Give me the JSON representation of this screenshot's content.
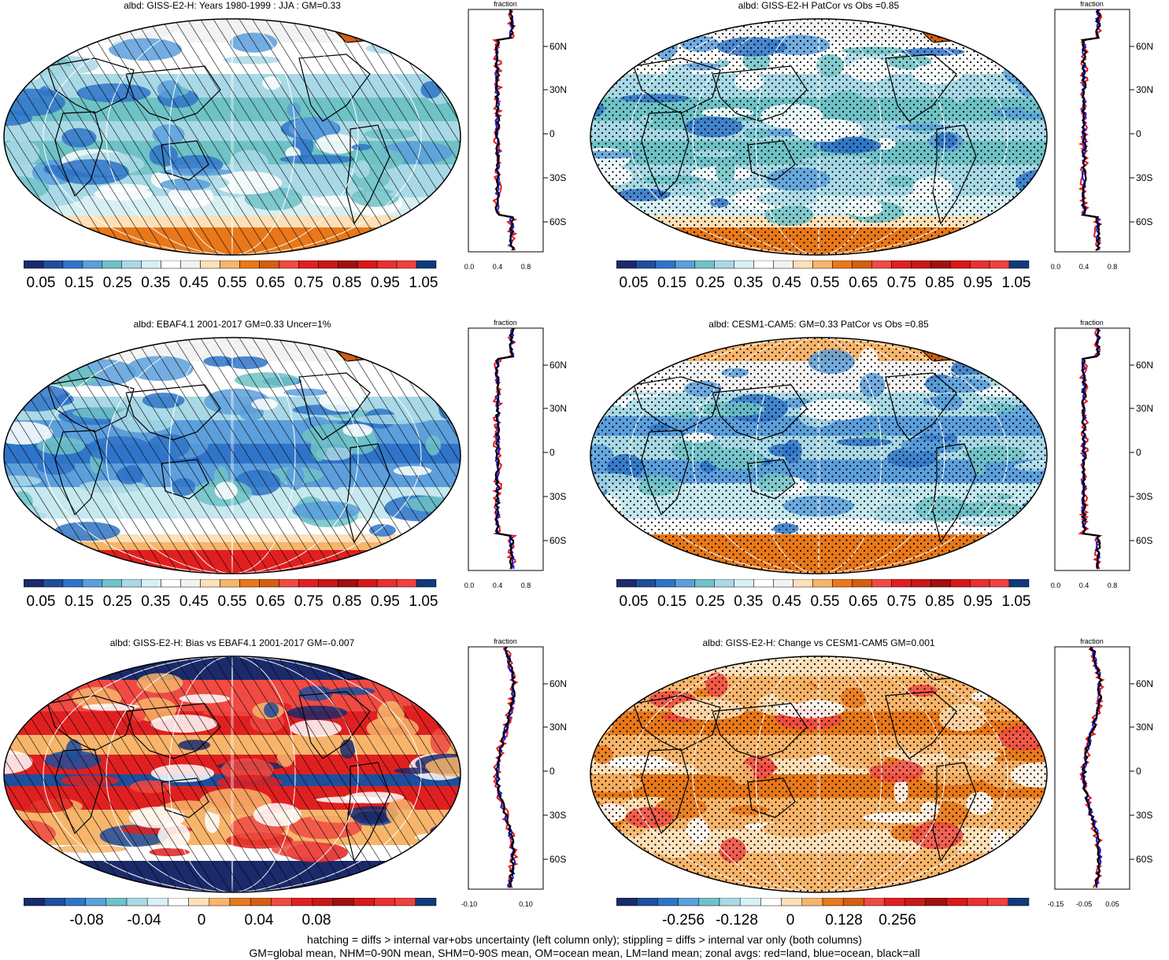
{
  "panels": [
    {
      "id": "p1",
      "title": "albd: GISS-E2-H: Years 1980-1999 : JJA : GM=0.33",
      "style": "abs",
      "pattern": "hatch",
      "colorbar": [
        "0.05",
        "0.15",
        "0.25",
        "0.35",
        "0.45",
        "0.55",
        "0.65",
        "0.75",
        "0.85",
        "0.95",
        "1.05"
      ],
      "profile": {
        "title": "fraction",
        "xticks": [
          "0.0",
          "0.4",
          "0.8"
        ],
        "yticks": [
          "60N",
          "30N",
          "0",
          "30S",
          "60S"
        ]
      }
    },
    {
      "id": "p2",
      "title": "albd: GISS-E2-H PatCor vs Obs =0.85",
      "style": "abs",
      "pattern": "stipple",
      "colorbar": [
        "0.05",
        "0.15",
        "0.25",
        "0.35",
        "0.45",
        "0.55",
        "0.65",
        "0.75",
        "0.85",
        "0.95",
        "1.05"
      ],
      "profile": {
        "title": "fraction",
        "xticks": [
          "0.0",
          "0.4",
          "0.8"
        ],
        "yticks": [
          "60N",
          "30N",
          "0",
          "30S",
          "60S"
        ]
      }
    },
    {
      "id": "p3",
      "title": "albd: EBAF4.1 2001-2017 GM=0.33 Uncer=1%",
      "style": "abs",
      "pattern": "hatch",
      "colorbar": [
        "0.05",
        "0.15",
        "0.25",
        "0.35",
        "0.45",
        "0.55",
        "0.65",
        "0.75",
        "0.85",
        "0.95",
        "1.05"
      ],
      "profile": {
        "title": "fraction",
        "xticks": [
          "0.0",
          "0.4",
          "0.8"
        ],
        "yticks": [
          "60N",
          "30N",
          "0",
          "30S",
          "60S"
        ]
      }
    },
    {
      "id": "p4",
      "title": "albd: CESM1-CAM5: GM=0.33 PatCor vs Obs =0.85",
      "style": "abs",
      "pattern": "stipple",
      "colorbar": [
        "0.05",
        "0.15",
        "0.25",
        "0.35",
        "0.45",
        "0.55",
        "0.65",
        "0.75",
        "0.85",
        "0.95",
        "1.05"
      ],
      "profile": {
        "title": "fraction",
        "xticks": [
          "0.0",
          "0.4",
          "0.8"
        ],
        "yticks": [
          "60N",
          "30N",
          "0",
          "30S",
          "60S"
        ]
      }
    },
    {
      "id": "p5",
      "title": "albd: GISS-E2-H: Bias vs EBAF4.1 2001-2017 GM=-0.007",
      "style": "bias",
      "pattern": "hatch",
      "colorbar": [
        "-0.08",
        "-0.04",
        "0",
        "0.04",
        "0.08"
      ],
      "profile": {
        "title": "fraction",
        "xticks": [
          "-0.10",
          "0.10"
        ],
        "yticks": [
          "60N",
          "30N",
          "0",
          "30S",
          "60S"
        ]
      }
    },
    {
      "id": "p6",
      "title": "albd: GISS-E2-H: Change vs CESM1-CAM5 GM=0.001",
      "style": "change",
      "pattern": "stipple",
      "colorbar": [
        "-0.256",
        "-0.128",
        "0",
        "0.128",
        "0.256"
      ],
      "profile": {
        "title": "fraction",
        "xticks": [
          "-0.15",
          "-0.05",
          "0.05"
        ],
        "yticks": [
          "60N",
          "30N",
          "0",
          "30S",
          "60S"
        ]
      }
    }
  ],
  "colors": {
    "abs_scale": [
      "#1b2a6b",
      "#1f4e9c",
      "#2f74c8",
      "#5c9fdc",
      "#6fc2c6",
      "#a9d9e6",
      "#d8f0f4",
      "#ffffff",
      "#f2f2f2",
      "#fde0b8",
      "#f7b56b",
      "#e8781a",
      "#d25f12",
      "#f04a42",
      "#e02020",
      "#c81818",
      "#a01010",
      "#d81818",
      "#e83030",
      "#f04040",
      "#103a7a"
    ],
    "div_scale": [
      "#1b2a6b",
      "#1f4e9c",
      "#2f74c8",
      "#5c9fdc",
      "#6fc2c6",
      "#a9d9e6",
      "#d8f0f4",
      "#ffffff",
      "#fde0b8",
      "#f7b56b",
      "#e8781a",
      "#d25f12",
      "#f04a42",
      "#e02020",
      "#c81818",
      "#a01010",
      "#d81818",
      "#e83030",
      "#f04040",
      "#103a7a"
    ],
    "land_line": "#e41a1c",
    "ocean_line": "#1a1ae0",
    "all_line": "#000000"
  },
  "footer": {
    "line1": "hatching = diffs > internal var+obs uncertainty (left column only); stippling = diffs > internal var only (both columns)",
    "line2": "GM=global mean, NHM=0-90N mean, SHM=0-90S mean, OM=ocean mean, LM=land mean; zonal avgs: red=land, blue=ocean, black=all"
  }
}
